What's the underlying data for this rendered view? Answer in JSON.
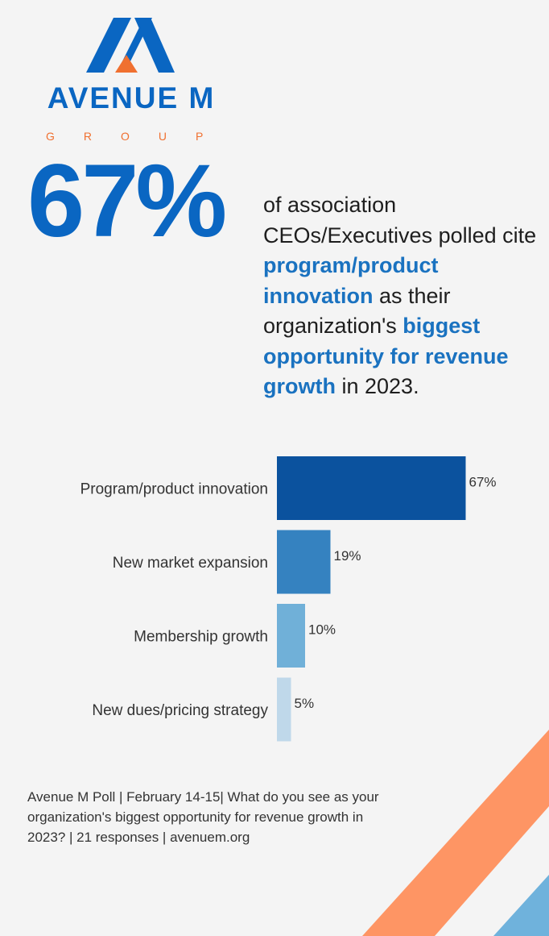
{
  "logo": {
    "name": "AVENUE M",
    "sub": "GROUP",
    "colors": {
      "blue": "#0a66c2",
      "orange": "#f07030"
    }
  },
  "headline": {
    "stat": "67%",
    "segments": [
      {
        "text": "of association CEOs/Executives polled cite ",
        "highlight": false
      },
      {
        "text": "program/product innovation",
        "highlight": true
      },
      {
        "text": " as their organization's ",
        "highlight": false
      },
      {
        "text": "biggest opportunity for revenue growth",
        "highlight": true
      },
      {
        "text": " in 2023.",
        "highlight": false
      }
    ]
  },
  "chart_data": {
    "type": "bar",
    "orientation": "horizontal",
    "categories": [
      "Program/product innovation",
      "New market expansion",
      "Membership growth",
      "New dues/pricing strategy"
    ],
    "values": [
      67,
      19,
      10,
      5
    ],
    "value_labels": [
      "67%",
      "19%",
      "10%",
      "5%"
    ],
    "unit": "%",
    "bar_colors": [
      "#0b529e",
      "#3582c0",
      "#70b0d8",
      "#bfd8ea"
    ],
    "xlim": [
      0,
      100
    ],
    "grid": false,
    "legend": "none"
  },
  "footnote": "Avenue M Poll | February 14-15| What do you see as your organization's biggest opportunity for revenue growth in 2023? | 21 responses | avenuem.org",
  "decoration": {
    "stripe_colors": [
      "#fe9564",
      "#6fb2dc"
    ]
  }
}
